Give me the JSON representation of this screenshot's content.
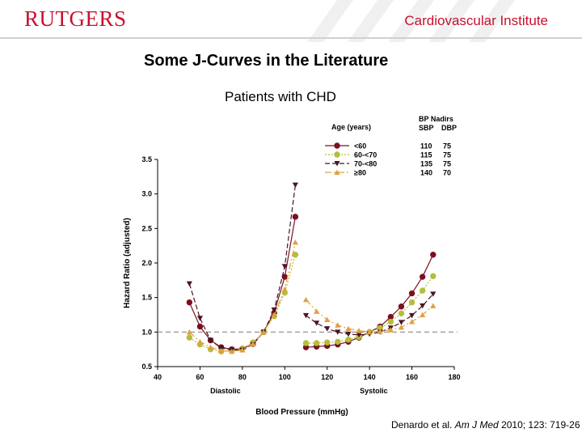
{
  "header": {
    "logo_text": "RUTGERS",
    "institute": "Cardiovascular Institute",
    "brand_color": "#c8102e"
  },
  "slide": {
    "title": "Some J-Curves in the Literature",
    "subtitle": "Patients with CHD",
    "citation": {
      "authors": "Denardo et al. ",
      "journal": "Am J Med",
      "details": " 2010; 123: 719-26"
    }
  },
  "chart_data": {
    "type": "line",
    "xlabel": "Blood Pressure (mmHg)",
    "ylabel": "Hazard Ratio (adjusted)",
    "xlim": [
      40,
      180
    ],
    "ylim": [
      0.5,
      3.5
    ],
    "xticks": [
      40,
      60,
      80,
      100,
      120,
      140,
      160,
      180
    ],
    "yticks": [
      "0.5",
      "1.0",
      "1.5",
      "2.0",
      "2.5",
      "3.0",
      "3.5"
    ],
    "sublabels": [
      {
        "text": "Diastolic",
        "x": 72
      },
      {
        "text": "Systolic",
        "x": 142
      }
    ],
    "reference_line": 1.0,
    "grid": false,
    "legend": {
      "placement": "top-right",
      "title": "Age (years)",
      "nadir_title": "BP Nadirs",
      "nadir_cols": [
        "SBP",
        "DBP"
      ]
    },
    "series": [
      {
        "name": "<60",
        "color": "#7a1020",
        "marker": "circle",
        "dash": "",
        "nadir_sbp": "110",
        "nadir_dbp": "75",
        "diastolic": {
          "x": [
            55,
            60,
            65,
            70,
            75,
            80,
            85,
            90,
            95,
            100,
            105
          ],
          "y": [
            1.43,
            1.08,
            0.88,
            0.78,
            0.75,
            0.76,
            0.83,
            1.0,
            1.28,
            1.8,
            2.67
          ]
        },
        "systolic": {
          "x": [
            110,
            115,
            120,
            125,
            130,
            135,
            140,
            145,
            150,
            155,
            160,
            165,
            170
          ],
          "y": [
            0.78,
            0.79,
            0.8,
            0.82,
            0.86,
            0.92,
            1.0,
            1.08,
            1.22,
            1.37,
            1.56,
            1.8,
            2.12
          ]
        }
      },
      {
        "name": "60-<70",
        "color": "#b5bd3a",
        "marker": "circle",
        "dash": "2,2",
        "nadir_sbp": "115",
        "nadir_dbp": "75",
        "diastolic": {
          "x": [
            55,
            60,
            65,
            70,
            75,
            80,
            85,
            90,
            95,
            100,
            105
          ],
          "y": [
            0.92,
            0.82,
            0.75,
            0.72,
            0.73,
            0.76,
            0.85,
            1.0,
            1.23,
            1.57,
            2.12
          ]
        },
        "systolic": {
          "x": [
            110,
            115,
            120,
            125,
            130,
            135,
            140,
            145,
            150,
            155,
            160,
            165,
            170
          ],
          "y": [
            0.84,
            0.84,
            0.85,
            0.86,
            0.89,
            0.93,
            1.0,
            1.06,
            1.15,
            1.27,
            1.43,
            1.6,
            1.81
          ]
        }
      },
      {
        "name": "70-<80",
        "color": "#4a1424",
        "marker": "triangle-down",
        "dash": "6,3",
        "nadir_sbp": "135",
        "nadir_dbp": "75",
        "diastolic": {
          "x": [
            55,
            60,
            65,
            70,
            75,
            80,
            85,
            90,
            95,
            100,
            105
          ],
          "y": [
            1.7,
            1.2,
            0.88,
            0.77,
            0.74,
            0.74,
            0.82,
            1.0,
            1.32,
            1.95,
            3.13
          ]
        },
        "systolic": {
          "x": [
            110,
            115,
            120,
            125,
            130,
            135,
            140,
            145,
            150,
            155,
            160,
            165,
            170
          ],
          "y": [
            1.24,
            1.13,
            1.05,
            1.0,
            0.97,
            0.96,
            0.97,
            1.0,
            1.06,
            1.14,
            1.24,
            1.38,
            1.55
          ]
        }
      },
      {
        "name": "≥80",
        "color": "#e0a040",
        "marker": "triangle-up",
        "dash": "8,3,2,3",
        "nadir_sbp": "140",
        "nadir_dbp": "70",
        "diastolic": {
          "x": [
            55,
            60,
            65,
            70,
            75,
            80,
            85,
            90,
            95,
            100,
            105
          ],
          "y": [
            1.0,
            0.86,
            0.78,
            0.73,
            0.72,
            0.74,
            0.83,
            1.0,
            1.25,
            1.62,
            2.3
          ]
        },
        "systolic": {
          "x": [
            110,
            115,
            120,
            125,
            130,
            135,
            140,
            145,
            150,
            155,
            160,
            165,
            170
          ],
          "y": [
            1.47,
            1.3,
            1.18,
            1.1,
            1.05,
            1.02,
            1.0,
            1.01,
            1.03,
            1.07,
            1.15,
            1.25,
            1.38
          ]
        }
      }
    ]
  }
}
